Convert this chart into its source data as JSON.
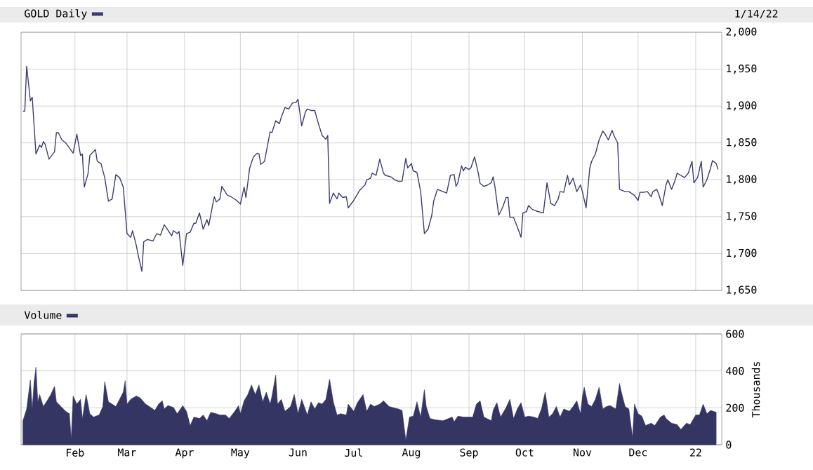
{
  "chart_data": [
    {
      "type": "line",
      "subtitle": "1/14/22",
      "legend": "top left",
      "grid": true,
      "tick_labels": "y",
      "xlim": [
        "2021-01-03",
        "2022-01-15"
      ],
      "ylim": [
        1650,
        2000
      ],
      "xticks": [
        {
          "value": "2021-02-01",
          "label": null
        },
        {
          "value": "2021-03-01",
          "label": null
        },
        {
          "value": "2021-04-01",
          "label": null
        },
        {
          "value": "2021-05-01",
          "label": null
        },
        {
          "value": "2021-06-01",
          "label": null
        },
        {
          "value": "2021-07-01",
          "label": null
        },
        {
          "value": "2021-08-01",
          "label": null
        },
        {
          "value": "2021-09-01",
          "label": null
        },
        {
          "value": "2021-10-01",
          "label": null
        },
        {
          "value": "2021-11-01",
          "label": null
        },
        {
          "value": "2021-12-01",
          "label": null
        },
        {
          "value": "2022-01-01",
          "label": null
        }
      ],
      "yticks": [
        {
          "value": 1650,
          "label": "1,650"
        },
        {
          "value": 1700,
          "label": "1,700"
        },
        {
          "value": 1750,
          "label": "1,750"
        },
        {
          "value": 1800,
          "label": "1,800"
        },
        {
          "value": 1850,
          "label": "1,850"
        },
        {
          "value": 1900,
          "label": "1,900"
        },
        {
          "value": 1950,
          "label": "1,950"
        },
        {
          "value": 2000,
          "label": "2,000"
        }
      ],
      "x": [
        "2021-01-04",
        "2021-01-05",
        "2021-01-06",
        "2021-01-08",
        "2021-01-09",
        "2021-01-11",
        "2021-01-13",
        "2021-01-14",
        "2021-01-15",
        "2021-01-16",
        "2021-01-18",
        "2021-01-21",
        "2021-01-22",
        "2021-01-23",
        "2021-01-25",
        "2021-01-27",
        "2021-01-29",
        "2021-01-31",
        "2021-02-02",
        "2021-02-04",
        "2021-02-05",
        "2021-02-06",
        "2021-02-08",
        "2021-02-09",
        "2021-02-12",
        "2021-02-13",
        "2021-02-15",
        "2021-02-17",
        "2021-02-19",
        "2021-02-21",
        "2021-02-23",
        "2021-02-25",
        "2021-02-27",
        "2021-03-01",
        "2021-03-03",
        "2021-03-04",
        "2021-03-06",
        "2021-03-07",
        "2021-03-09",
        "2021-03-10",
        "2021-03-12",
        "2021-03-15",
        "2021-03-17",
        "2021-03-19",
        "2021-03-21",
        "2021-03-23",
        "2021-03-25",
        "2021-03-26",
        "2021-03-28",
        "2021-03-29",
        "2021-03-31",
        "2021-04-02",
        "2021-04-04",
        "2021-04-06",
        "2021-04-07",
        "2021-04-09",
        "2021-04-11",
        "2021-04-13",
        "2021-04-14",
        "2021-04-16",
        "2021-04-17",
        "2021-04-18",
        "2021-04-20",
        "2021-04-21",
        "2021-04-24",
        "2021-04-26",
        "2021-04-29",
        "2021-05-01",
        "2021-05-03",
        "2021-05-04",
        "2021-05-06",
        "2021-05-08",
        "2021-05-10",
        "2021-05-11",
        "2021-05-12",
        "2021-05-14",
        "2021-05-17",
        "2021-05-18",
        "2021-05-20",
        "2021-05-22",
        "2021-05-23",
        "2021-05-25",
        "2021-05-27",
        "2021-05-29",
        "2021-05-31",
        "2021-06-01",
        "2021-06-03",
        "2021-06-05",
        "2021-06-06",
        "2021-06-08",
        "2021-06-10",
        "2021-06-12",
        "2021-06-14",
        "2021-06-16",
        "2021-06-17",
        "2021-06-18",
        "2021-06-20",
        "2021-06-22",
        "2021-06-23",
        "2021-06-25",
        "2021-06-27",
        "2021-06-28",
        "2021-07-01",
        "2021-07-04",
        "2021-07-07",
        "2021-07-08",
        "2021-07-10",
        "2021-07-11",
        "2021-07-13",
        "2021-07-15",
        "2021-07-17",
        "2021-07-18",
        "2021-07-21",
        "2021-07-23",
        "2021-07-25",
        "2021-07-27",
        "2021-07-29",
        "2021-07-30",
        "2021-08-01",
        "2021-08-02",
        "2021-08-04",
        "2021-08-06",
        "2021-08-08",
        "2021-08-10",
        "2021-08-12",
        "2021-08-13",
        "2021-08-15",
        "2021-08-18",
        "2021-08-20",
        "2021-08-22",
        "2021-08-24",
        "2021-08-25",
        "2021-08-26",
        "2021-08-28",
        "2021-08-29",
        "2021-08-30",
        "2021-09-01",
        "2021-09-02",
        "2021-09-04",
        "2021-09-06",
        "2021-09-07",
        "2021-09-09",
        "2021-09-11",
        "2021-09-13",
        "2021-09-14",
        "2021-09-15",
        "2021-09-17",
        "2021-09-19",
        "2021-09-21",
        "2021-09-22",
        "2021-09-23",
        "2021-09-25",
        "2021-09-27",
        "2021-09-29",
        "2021-09-30",
        "2021-10-02",
        "2021-10-03",
        "2021-10-05",
        "2021-10-08",
        "2021-10-11",
        "2021-10-13",
        "2021-10-15",
        "2021-10-17",
        "2021-10-19",
        "2021-10-20",
        "2021-10-22",
        "2021-10-24",
        "2021-10-25",
        "2021-10-27",
        "2021-10-29",
        "2021-10-31",
        "2021-11-01",
        "2021-11-03",
        "2021-11-05",
        "2021-11-06",
        "2021-11-08",
        "2021-11-10",
        "2021-11-12",
        "2021-11-13",
        "2021-11-15",
        "2021-11-17",
        "2021-11-18",
        "2021-11-20",
        "2021-11-21",
        "2021-11-24",
        "2021-11-26",
        "2021-11-29",
        "2021-12-01",
        "2021-12-02",
        "2021-12-04",
        "2021-12-06",
        "2021-12-08",
        "2021-12-09",
        "2021-12-11",
        "2021-12-12",
        "2021-12-14",
        "2021-12-16",
        "2021-12-17",
        "2021-12-19",
        "2021-12-21",
        "2021-12-22",
        "2021-12-24",
        "2021-12-26",
        "2021-12-28",
        "2021-12-30",
        "2021-12-31",
        "2022-01-02",
        "2022-01-04",
        "2022-01-05",
        "2022-01-07",
        "2022-01-09",
        "2022-01-10",
        "2022-01-12",
        "2022-01-13"
      ],
      "series": [
        {
          "name": "GOLD Daily",
          "color": "#3c3c70",
          "values": [
            1893,
            1893,
            1954,
            1907,
            1912,
            1835,
            1847,
            1844,
            1852,
            1848,
            1828,
            1838,
            1864,
            1864,
            1854,
            1850,
            1843,
            1836,
            1862,
            1833,
            1835,
            1790,
            1808,
            1833,
            1841,
            1825,
            1822,
            1803,
            1771,
            1774,
            1807,
            1803,
            1790,
            1727,
            1722,
            1731,
            1711,
            1698,
            1676,
            1716,
            1719,
            1717,
            1727,
            1725,
            1739,
            1732,
            1724,
            1731,
            1727,
            1730,
            1684,
            1727,
            1729,
            1741,
            1741,
            1755,
            1733,
            1746,
            1738,
            1765,
            1777,
            1770,
            1774,
            1791,
            1779,
            1777,
            1772,
            1767,
            1790,
            1776,
            1816,
            1831,
            1836,
            1835,
            1821,
            1825,
            1865,
            1864,
            1880,
            1876,
            1885,
            1898,
            1896,
            1904,
            1905,
            1909,
            1873,
            1892,
            1896,
            1894,
            1894,
            1876,
            1860,
            1855,
            1860,
            1768,
            1782,
            1774,
            1782,
            1776,
            1777,
            1762,
            1772,
            1785,
            1793,
            1800,
            1802,
            1809,
            1806,
            1828,
            1809,
            1806,
            1804,
            1800,
            1798,
            1798,
            1829,
            1816,
            1822,
            1812,
            1810,
            1784,
            1727,
            1733,
            1752,
            1771,
            1787,
            1784,
            1782,
            1806,
            1807,
            1791,
            1796,
            1819,
            1812,
            1817,
            1814,
            1816,
            1831,
            1809,
            1795,
            1791,
            1793,
            1796,
            1804,
            1790,
            1752,
            1762,
            1776,
            1776,
            1749,
            1749,
            1736,
            1722,
            1755,
            1757,
            1765,
            1760,
            1757,
            1755,
            1796,
            1768,
            1765,
            1774,
            1784,
            1783,
            1806,
            1793,
            1802,
            1784,
            1793,
            1784,
            1762,
            1816,
            1825,
            1835,
            1854,
            1866,
            1863,
            1854,
            1867,
            1860,
            1850,
            1787,
            1784,
            1784,
            1779,
            1772,
            1783,
            1783,
            1784,
            1777,
            1784,
            1787,
            1781,
            1765,
            1793,
            1800,
            1787,
            1800,
            1809,
            1806,
            1803,
            1809,
            1825,
            1796,
            1803,
            1825,
            1790,
            1800,
            1816,
            1826,
            1822,
            1814
          ]
        }
      ]
    },
    {
      "type": "area",
      "ylabel": "Thousands",
      "legend": "top left",
      "grid": true,
      "xlim": [
        "2021-01-03",
        "2022-01-15"
      ],
      "ylim": [
        0,
        600
      ],
      "xticks": [
        {
          "value": "2021-02-01",
          "label": "Feb"
        },
        {
          "value": "2021-03-01",
          "label": "Mar"
        },
        {
          "value": "2021-04-01",
          "label": "Apr"
        },
        {
          "value": "2021-05-01",
          "label": "May"
        },
        {
          "value": "2021-06-01",
          "label": "Jun"
        },
        {
          "value": "2021-07-01",
          "label": "Jul"
        },
        {
          "value": "2021-08-01",
          "label": "Aug"
        },
        {
          "value": "2021-09-01",
          "label": "Sep"
        },
        {
          "value": "2021-10-01",
          "label": "Oct"
        },
        {
          "value": "2021-11-01",
          "label": "Nov"
        },
        {
          "value": "2021-12-01",
          "label": "Dec"
        },
        {
          "value": "2022-01-01",
          "label": "22"
        }
      ],
      "yticks": [
        0,
        200,
        400,
        600
      ],
      "x": [
        "2021-01-04",
        "2021-01-06",
        "2021-01-08",
        "2021-01-09",
        "2021-01-10",
        "2021-01-11",
        "2021-01-12",
        "2021-01-13",
        "2021-01-15",
        "2021-01-17",
        "2021-01-19",
        "2021-01-21",
        "2021-01-22",
        "2021-01-24",
        "2021-01-27",
        "2021-01-29",
        "2021-01-30",
        "2021-01-31",
        "2021-02-02",
        "2021-02-04",
        "2021-02-05",
        "2021-02-07",
        "2021-02-09",
        "2021-02-11",
        "2021-02-14",
        "2021-02-16",
        "2021-02-17",
        "2021-02-19",
        "2021-02-21",
        "2021-02-23",
        "2021-02-27",
        "2021-02-28",
        "2021-03-01",
        "2021-03-03",
        "2021-03-06",
        "2021-03-08",
        "2021-03-11",
        "2021-03-13",
        "2021-03-16",
        "2021-03-18",
        "2021-03-20",
        "2021-03-21",
        "2021-03-23",
        "2021-03-26",
        "2021-03-28",
        "2021-03-31",
        "2021-04-02",
        "2021-04-04",
        "2021-04-06",
        "2021-04-09",
        "2021-04-11",
        "2021-04-13",
        "2021-04-15",
        "2021-04-18",
        "2021-04-20",
        "2021-04-23",
        "2021-04-25",
        "2021-04-28",
        "2021-04-30",
        "2021-05-01",
        "2021-05-03",
        "2021-05-05",
        "2021-05-07",
        "2021-05-09",
        "2021-05-11",
        "2021-05-13",
        "2021-05-15",
        "2021-05-17",
        "2021-05-18",
        "2021-05-20",
        "2021-05-21",
        "2021-05-23",
        "2021-05-25",
        "2021-05-28",
        "2021-05-30",
        "2021-06-01",
        "2021-06-03",
        "2021-06-06",
        "2021-06-08",
        "2021-06-10",
        "2021-06-12",
        "2021-06-14",
        "2021-06-16",
        "2021-06-18",
        "2021-06-20",
        "2021-06-22",
        "2021-06-24",
        "2021-06-27",
        "2021-06-28",
        "2021-07-01",
        "2021-07-03",
        "2021-07-06",
        "2021-07-08",
        "2021-07-10",
        "2021-07-12",
        "2021-07-15",
        "2021-07-17",
        "2021-07-20",
        "2021-07-25",
        "2021-07-27",
        "2021-07-29",
        "2021-07-31",
        "2021-08-02",
        "2021-08-04",
        "2021-08-06",
        "2021-08-08",
        "2021-08-09",
        "2021-08-11",
        "2021-08-14",
        "2021-08-18",
        "2021-08-23",
        "2021-08-24",
        "2021-08-26",
        "2021-08-29",
        "2021-09-03",
        "2021-09-05",
        "2021-09-07",
        "2021-09-09",
        "2021-09-13",
        "2021-09-14",
        "2021-09-16",
        "2021-09-18",
        "2021-09-21",
        "2021-09-23",
        "2021-09-25",
        "2021-09-27",
        "2021-09-29",
        "2021-10-01",
        "2021-10-03",
        "2021-10-06",
        "2021-10-08",
        "2021-10-10",
        "2021-10-12",
        "2021-10-14",
        "2021-10-16",
        "2021-10-18",
        "2021-10-20",
        "2021-10-22",
        "2021-10-25",
        "2021-10-27",
        "2021-10-29",
        "2021-10-31",
        "2021-11-01",
        "2021-11-02",
        "2021-11-04",
        "2021-11-06",
        "2021-11-08",
        "2021-11-10",
        "2021-11-12",
        "2021-11-14",
        "2021-11-16",
        "2021-11-19",
        "2021-11-21",
        "2021-11-22",
        "2021-11-24",
        "2021-11-26",
        "2021-11-28",
        "2021-11-29",
        "2021-12-01",
        "2021-12-03",
        "2021-12-05",
        "2021-12-08",
        "2021-12-10",
        "2021-12-13",
        "2021-12-15",
        "2021-12-16",
        "2021-12-19",
        "2021-12-22",
        "2021-12-24",
        "2021-12-27",
        "2021-12-29",
        "2022-01-01",
        "2022-01-03",
        "2022-01-05",
        "2022-01-07",
        "2022-01-09",
        "2022-01-12"
      ],
      "series": [
        {
          "name": "Volume",
          "color": "#353563",
          "values": [
            130,
            194,
            350,
            194,
            337,
            420,
            233,
            272,
            207,
            238,
            272,
            316,
            233,
            212,
            181,
            168,
            31,
            264,
            220,
            246,
            142,
            272,
            168,
            150,
            161,
            207,
            342,
            233,
            220,
            207,
            285,
            347,
            220,
            246,
            264,
            254,
            220,
            207,
            186,
            220,
            238,
            194,
            212,
            202,
            168,
            212,
            181,
            104,
            150,
            142,
            161,
            130,
            176,
            168,
            161,
            161,
            142,
            181,
            212,
            168,
            238,
            272,
            324,
            272,
            324,
            233,
            285,
            220,
            264,
            376,
            220,
            246,
            181,
            207,
            272,
            168,
            246,
            161,
            233,
            194,
            228,
            220,
            246,
            355,
            233,
            161,
            168,
            161,
            220,
            181,
            228,
            272,
            181,
            220,
            207,
            220,
            238,
            207,
            194,
            186,
            26,
            150,
            155,
            233,
            150,
            298,
            207,
            142,
            135,
            130,
            150,
            124,
            155,
            150,
            150,
            220,
            238,
            150,
            130,
            186,
            228,
            150,
            202,
            246,
            142,
            194,
            228,
            150,
            155,
            150,
            142,
            194,
            285,
            150,
            168,
            207,
            150,
            194,
            181,
            207,
            238,
            168,
            259,
            311,
            220,
            207,
            246,
            311,
            194,
            207,
            212,
            194,
            332,
            285,
            207,
            194,
            39,
            220,
            168,
            155,
            104,
            117,
            104,
            150,
            161,
            142,
            117,
            109,
            83,
            117,
            109,
            161,
            161,
            220,
            168,
            186,
            176
          ]
        }
      ]
    }
  ]
}
